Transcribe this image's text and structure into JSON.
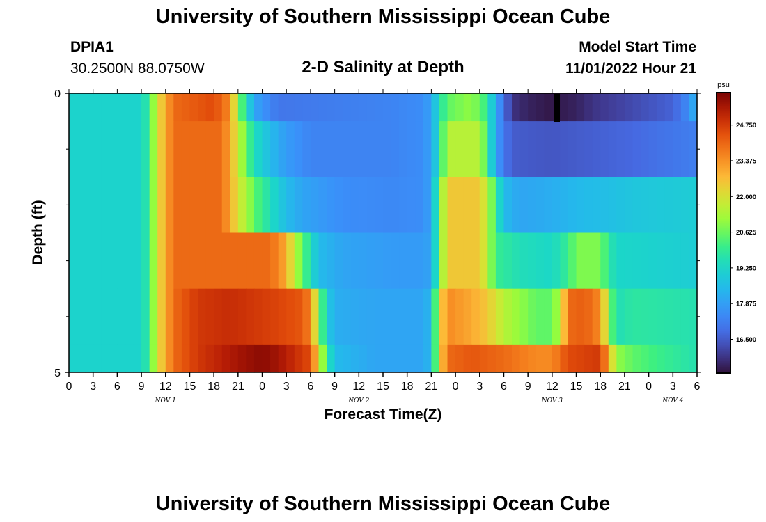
{
  "page_title": "University of Southern Mississippi Ocean Cube",
  "station": {
    "id": "DPIA1",
    "coords": "30.2500N  88.0750W"
  },
  "model": {
    "start_label": "Model Start Time",
    "start_value": "11/01/2022 Hour 21"
  },
  "chart_data": {
    "type": "heatmap",
    "title": "2-D Salinity at Depth",
    "xlabel": "Forecast Time(Z)",
    "ylabel": "Depth (ft)",
    "colorbar_unit": "psu",
    "colorbar_ticks": [
      24.75,
      23.375,
      22.0,
      20.625,
      19.25,
      17.875,
      16.5
    ],
    "colorbar_tick_labels": [
      "24.750",
      "23.375",
      "22.000",
      "20.625",
      "19.250",
      "17.875",
      "16.500"
    ],
    "value_range": [
      15.2,
      26.0
    ],
    "y_range": [
      0,
      5
    ],
    "y_tick_labels": [
      "0",
      "5"
    ],
    "y_minor_ticks": [
      1,
      2,
      3,
      4
    ],
    "x_range_hours": [
      0,
      78
    ],
    "x_tick_hours": [
      0,
      3,
      6,
      9,
      12,
      15,
      18,
      21,
      24,
      27,
      30,
      33,
      36,
      39,
      42,
      45,
      48,
      51,
      54,
      57,
      60,
      63,
      66,
      69,
      72,
      75,
      78
    ],
    "x_tick_labels": [
      "0",
      "3",
      "6",
      "9",
      "12",
      "15",
      "18",
      "21",
      "0",
      "3",
      "6",
      "9",
      "12",
      "15",
      "18",
      "21",
      "0",
      "3",
      "6",
      "9",
      "12",
      "15",
      "18",
      "21",
      "0",
      "3",
      "6"
    ],
    "date_labels": [
      {
        "hour": 12,
        "text": "NOV 1"
      },
      {
        "hour": 36,
        "text": "NOV 2"
      },
      {
        "hour": 60,
        "text": "NOV 3"
      },
      {
        "hour": 75,
        "text": "NOV 4"
      }
    ],
    "layer_bounds": [
      0,
      0.5,
      1.5,
      2.5,
      3.5,
      4.5,
      5
    ],
    "layers": [
      {
        "depth_top": 0,
        "depth_bottom": 0.5,
        "keys": [
          [
            0,
            19.2
          ],
          [
            9,
            19.2
          ],
          [
            10,
            20.0
          ],
          [
            11,
            22.0
          ],
          [
            13,
            24.0
          ],
          [
            18,
            24.5
          ],
          [
            20,
            23.5
          ],
          [
            21,
            21.0
          ],
          [
            22,
            19.5
          ],
          [
            23,
            18.0
          ],
          [
            26,
            17.0
          ],
          [
            40,
            17.3
          ],
          [
            44,
            17.5
          ],
          [
            45,
            18.0
          ],
          [
            46,
            19.5
          ],
          [
            47,
            20.5
          ],
          [
            50,
            21.0
          ],
          [
            52,
            20.0
          ],
          [
            53,
            18.0
          ],
          [
            54,
            17.0
          ],
          [
            55,
            15.8
          ],
          [
            57,
            15.5
          ],
          [
            60,
            15.3
          ],
          [
            63,
            15.5
          ],
          [
            65,
            15.8
          ],
          [
            70,
            16.2
          ],
          [
            75,
            16.6
          ],
          [
            77,
            17.5
          ],
          [
            78,
            18.5
          ]
        ]
      },
      {
        "depth_top": 0.5,
        "depth_bottom": 1.5,
        "keys": [
          [
            0,
            19.2
          ],
          [
            9,
            19.2
          ],
          [
            10,
            20.0
          ],
          [
            11,
            22.0
          ],
          [
            13,
            24.0
          ],
          [
            19,
            24.0
          ],
          [
            20,
            23.0
          ],
          [
            21,
            21.8
          ],
          [
            22,
            20.5
          ],
          [
            23,
            19.5
          ],
          [
            24,
            19.0
          ],
          [
            25,
            18.5
          ],
          [
            27,
            17.8
          ],
          [
            30,
            17.3
          ],
          [
            40,
            17.3
          ],
          [
            44,
            17.5
          ],
          [
            45,
            18.0
          ],
          [
            46,
            19.5
          ],
          [
            47,
            21.5
          ],
          [
            51,
            21.5
          ],
          [
            52,
            20.0
          ],
          [
            53,
            18.0
          ],
          [
            54,
            17.0
          ],
          [
            55,
            16.5
          ],
          [
            60,
            16.4
          ],
          [
            70,
            16.7
          ],
          [
            78,
            17.2
          ]
        ]
      },
      {
        "depth_top": 1.5,
        "depth_bottom": 2.5,
        "keys": [
          [
            0,
            19.2
          ],
          [
            9,
            19.2
          ],
          [
            10,
            20.0
          ],
          [
            11,
            22.0
          ],
          [
            13,
            24.0
          ],
          [
            19,
            24.0
          ],
          [
            20,
            23.0
          ],
          [
            21,
            22.0
          ],
          [
            22,
            21.3
          ],
          [
            23,
            20.5
          ],
          [
            25,
            19.5
          ],
          [
            27,
            18.5
          ],
          [
            29,
            18.0
          ],
          [
            34,
            17.5
          ],
          [
            40,
            17.4
          ],
          [
            44,
            17.5
          ],
          [
            45,
            18.0
          ],
          [
            46,
            20.5
          ],
          [
            47,
            22.5
          ],
          [
            51,
            22.5
          ],
          [
            52,
            21.5
          ],
          [
            53,
            20.0
          ],
          [
            54,
            18.5
          ],
          [
            56,
            18.0
          ],
          [
            60,
            18.2
          ],
          [
            64,
            18.5
          ],
          [
            67,
            18.6
          ],
          [
            70,
            18.8
          ],
          [
            78,
            19.0
          ]
        ]
      },
      {
        "depth_top": 2.5,
        "depth_bottom": 3.5,
        "keys": [
          [
            0,
            19.2
          ],
          [
            9,
            19.2
          ],
          [
            10,
            20.0
          ],
          [
            11,
            22.0
          ],
          [
            13,
            24.0
          ],
          [
            25,
            24.0
          ],
          [
            27,
            23.0
          ],
          [
            28,
            21.5
          ],
          [
            29,
            20.5
          ],
          [
            30,
            19.5
          ],
          [
            31,
            18.5
          ],
          [
            34,
            18.0
          ],
          [
            40,
            17.8
          ],
          [
            44,
            17.8
          ],
          [
            45,
            18.0
          ],
          [
            46,
            20.5
          ],
          [
            47,
            22.5
          ],
          [
            51,
            22.5
          ],
          [
            52,
            21.5
          ],
          [
            53,
            20.0
          ],
          [
            56,
            19.5
          ],
          [
            60,
            19.3
          ],
          [
            62,
            20.0
          ],
          [
            63,
            20.8
          ],
          [
            66,
            20.8
          ],
          [
            67,
            19.8
          ],
          [
            68,
            19.3
          ],
          [
            78,
            19.0
          ]
        ]
      },
      {
        "depth_top": 3.5,
        "depth_bottom": 4.5,
        "keys": [
          [
            0,
            19.2
          ],
          [
            9,
            19.2
          ],
          [
            10,
            20.0
          ],
          [
            11,
            22.0
          ],
          [
            13,
            24.0
          ],
          [
            16,
            24.8
          ],
          [
            20,
            25.0
          ],
          [
            26,
            24.6
          ],
          [
            29,
            24.3
          ],
          [
            30,
            23.5
          ],
          [
            31,
            21.0
          ],
          [
            32,
            19.0
          ],
          [
            33,
            18.2
          ],
          [
            38,
            18.0
          ],
          [
            44,
            18.0
          ],
          [
            45,
            18.5
          ],
          [
            46,
            22.0
          ],
          [
            47,
            23.5
          ],
          [
            50,
            23.0
          ],
          [
            52,
            22.5
          ],
          [
            54,
            21.5
          ],
          [
            56,
            21.0
          ],
          [
            58,
            20.5
          ],
          [
            60,
            20.5
          ],
          [
            61,
            21.5
          ],
          [
            62,
            24.0
          ],
          [
            64,
            24.2
          ],
          [
            66,
            23.5
          ],
          [
            67,
            21.0
          ],
          [
            68,
            19.5
          ],
          [
            70,
            19.8
          ],
          [
            78,
            19.6
          ]
        ]
      },
      {
        "depth_top": 4.5,
        "depth_bottom": 5,
        "keys": [
          [
            0,
            19.2
          ],
          [
            9,
            19.2
          ],
          [
            10,
            20.0
          ],
          [
            11,
            22.0
          ],
          [
            13,
            24.0
          ],
          [
            16,
            24.8
          ],
          [
            21,
            25.5
          ],
          [
            24,
            25.8
          ],
          [
            26,
            25.5
          ],
          [
            30,
            24.5
          ],
          [
            31,
            22.0
          ],
          [
            32,
            20.0
          ],
          [
            33,
            18.5
          ],
          [
            38,
            18.0
          ],
          [
            44,
            18.0
          ],
          [
            45,
            18.5
          ],
          [
            46,
            22.0
          ],
          [
            47,
            24.0
          ],
          [
            50,
            24.3
          ],
          [
            54,
            24.0
          ],
          [
            58,
            23.5
          ],
          [
            60,
            23.5
          ],
          [
            62,
            24.5
          ],
          [
            66,
            24.8
          ],
          [
            67,
            23.0
          ],
          [
            68,
            21.0
          ],
          [
            70,
            20.5
          ],
          [
            74,
            20.0
          ],
          [
            78,
            19.6
          ]
        ]
      }
    ]
  }
}
